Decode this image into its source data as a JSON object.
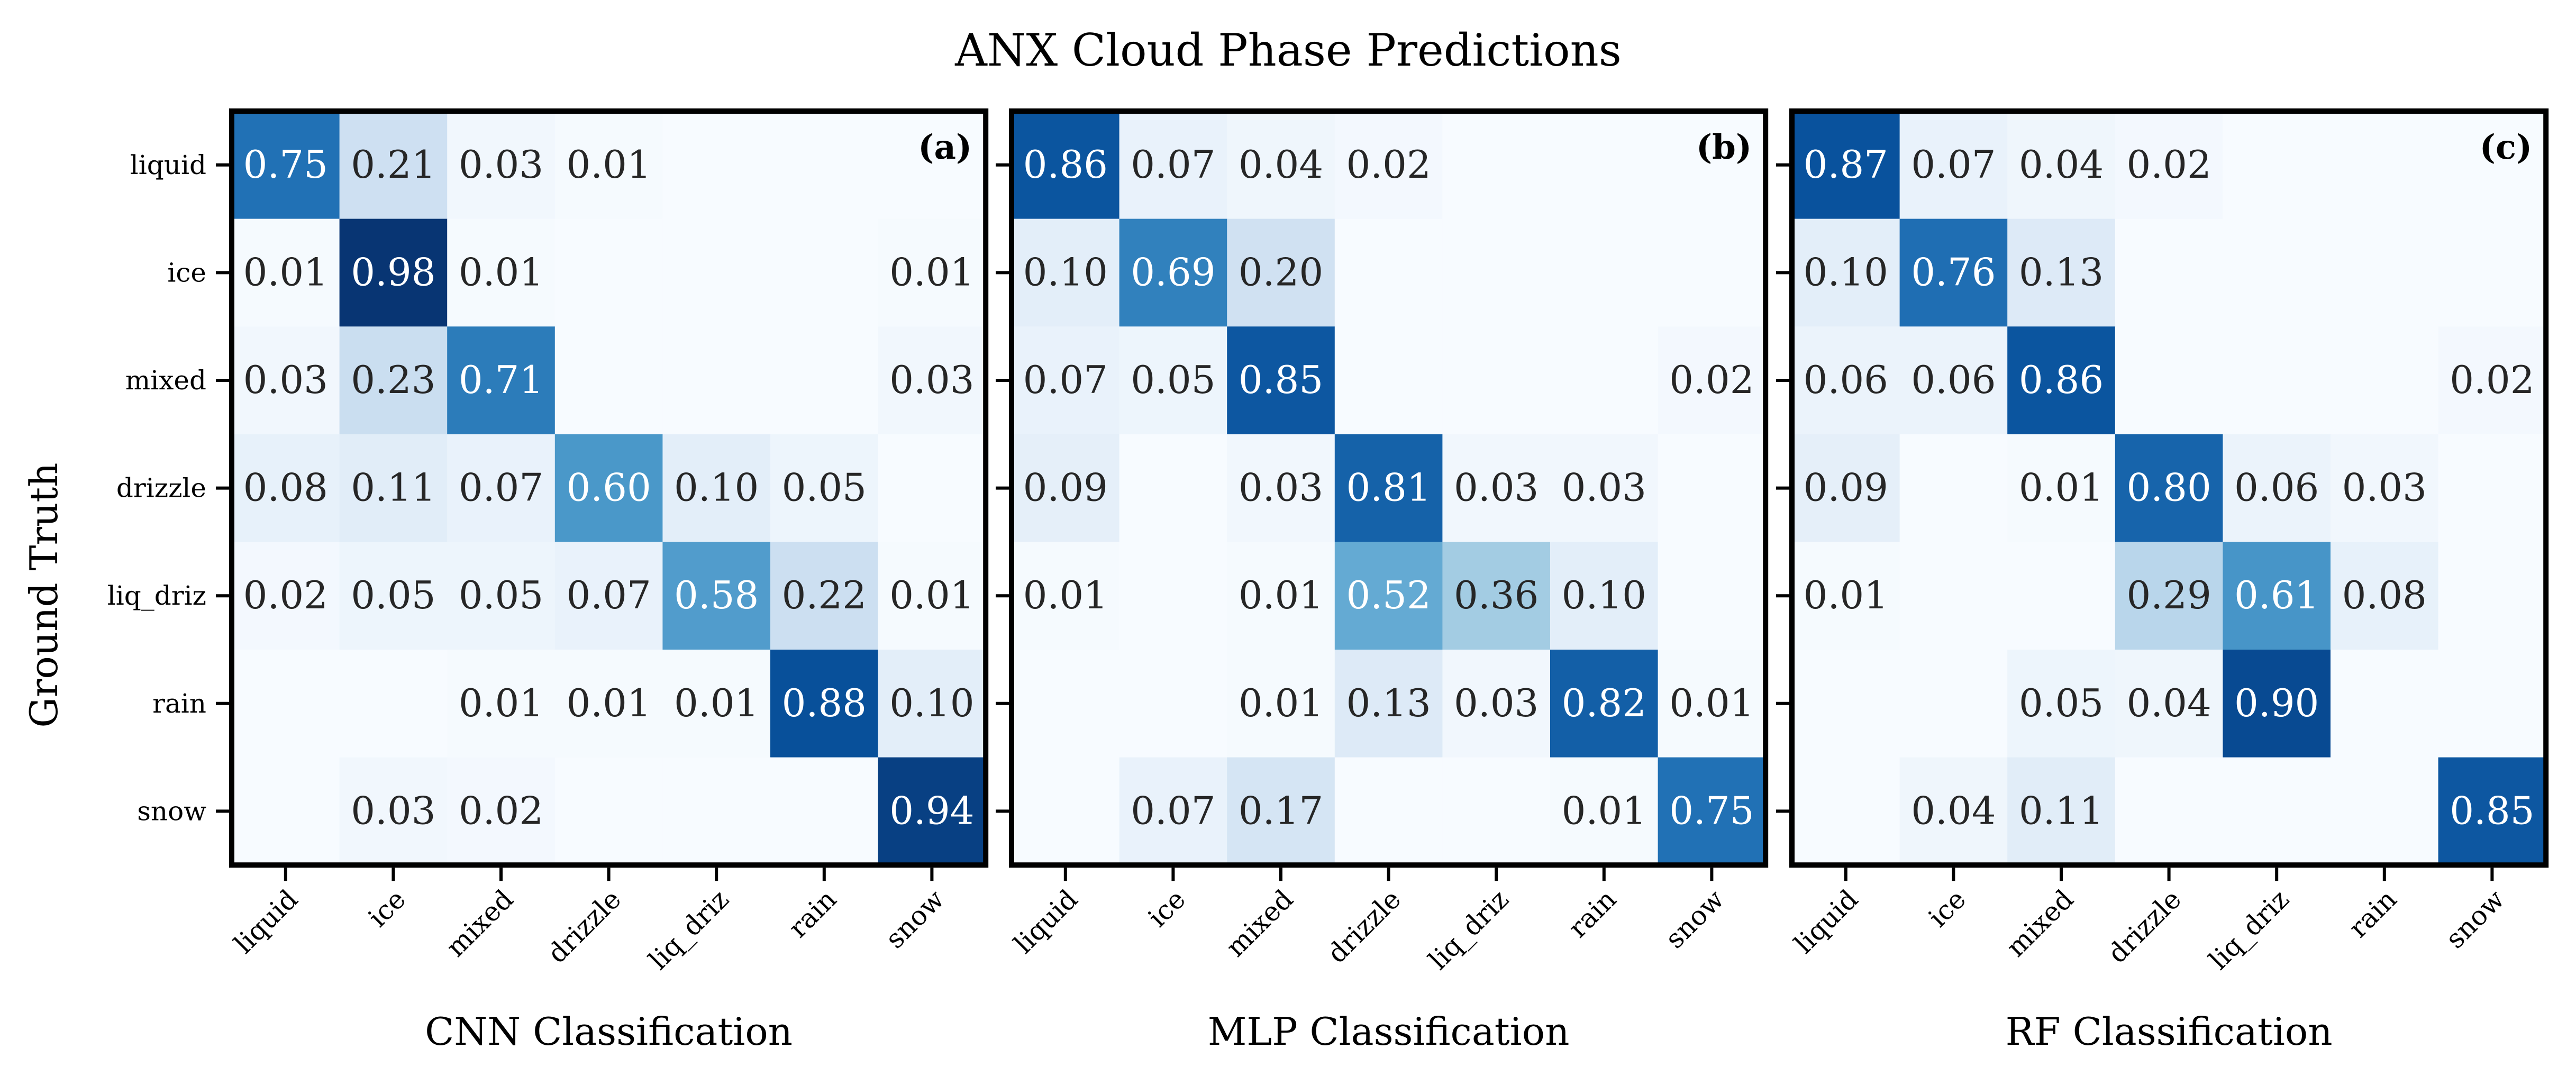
{
  "chart_data": {
    "type": "heatmap",
    "title": "ANX Cloud Phase Predictions",
    "ylabel": "Ground Truth",
    "colormap": "Blues",
    "vmin": 0,
    "vmax": 1,
    "rows": [
      "liquid",
      "ice",
      "mixed",
      "drizzle",
      "liq_driz",
      "rain",
      "snow"
    ],
    "columns": [
      "liquid",
      "ice",
      "mixed",
      "drizzle",
      "liq_driz",
      "rain",
      "snow"
    ],
    "panels": [
      {
        "tag": "(a)",
        "xlabel": "CNN Classification",
        "values": [
          [
            0.75,
            0.21,
            0.03,
            0.01,
            null,
            null,
            null
          ],
          [
            0.01,
            0.98,
            0.01,
            null,
            null,
            null,
            0.01
          ],
          [
            0.03,
            0.23,
            0.71,
            null,
            null,
            null,
            0.03
          ],
          [
            0.08,
            0.11,
            0.07,
            0.6,
            0.1,
            0.05,
            null
          ],
          [
            0.02,
            0.05,
            0.05,
            0.07,
            0.58,
            0.22,
            0.01
          ],
          [
            null,
            null,
            0.01,
            0.01,
            0.01,
            0.88,
            0.1
          ],
          [
            null,
            0.03,
            0.02,
            null,
            null,
            null,
            0.94
          ]
        ]
      },
      {
        "tag": "(b)",
        "xlabel": "MLP Classification",
        "values": [
          [
            0.86,
            0.07,
            0.04,
            0.02,
            null,
            null,
            null
          ],
          [
            0.1,
            0.69,
            0.2,
            null,
            null,
            null,
            null
          ],
          [
            0.07,
            0.05,
            0.85,
            null,
            null,
            null,
            0.02
          ],
          [
            0.09,
            null,
            0.03,
            0.81,
            0.03,
            0.03,
            null
          ],
          [
            0.01,
            null,
            0.01,
            0.52,
            0.36,
            0.1,
            null
          ],
          [
            null,
            null,
            0.01,
            0.13,
            0.03,
            0.82,
            0.01
          ],
          [
            null,
            0.07,
            0.17,
            null,
            null,
            0.01,
            0.75
          ]
        ]
      },
      {
        "tag": "(c)",
        "xlabel": "RF Classification",
        "values": [
          [
            0.87,
            0.07,
            0.04,
            0.02,
            null,
            null,
            null
          ],
          [
            0.1,
            0.76,
            0.13,
            null,
            null,
            null,
            null
          ],
          [
            0.06,
            0.06,
            0.86,
            null,
            null,
            null,
            0.02
          ],
          [
            0.09,
            null,
            0.01,
            0.8,
            0.06,
            0.03,
            null
          ],
          [
            0.01,
            null,
            null,
            0.29,
            0.61,
            0.08,
            null
          ],
          [
            null,
            null,
            0.05,
            0.04,
            0.9,
            null,
            null
          ],
          [
            null,
            0.04,
            0.11,
            null,
            null,
            null,
            0.85
          ]
        ]
      }
    ]
  }
}
